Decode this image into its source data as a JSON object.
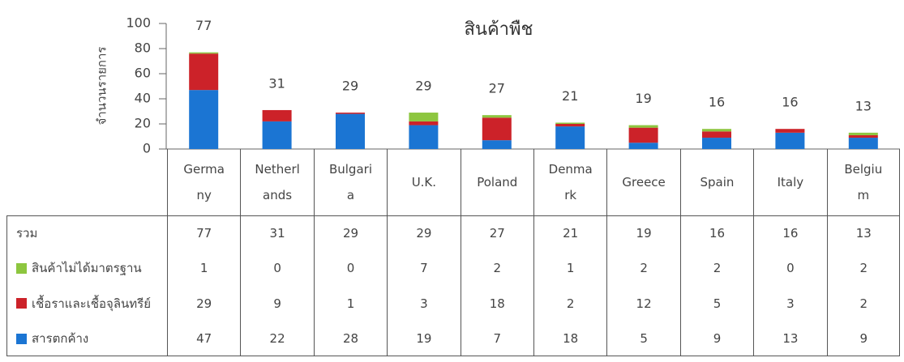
{
  "chart_data": {
    "type": "stacked_bar",
    "title": "สินค้าพืช",
    "y_label": "จำนวนรายการ",
    "categories": [
      "Germany",
      "Netherlands",
      "Bulgaria",
      "U.K.",
      "Poland",
      "Denmark",
      "Greece",
      "Spain",
      "Italy",
      "Belgium"
    ],
    "series": [
      {
        "name": "สารตกค้าง",
        "color": "#1b75d3",
        "values": [
          47,
          22,
          28,
          19,
          7,
          18,
          5,
          9,
          13,
          9
        ]
      },
      {
        "name": "เชื้อราและเชื้อจุลินทรีย์",
        "color": "#cc2229",
        "values": [
          29,
          9,
          1,
          3,
          18,
          2,
          12,
          5,
          3,
          2
        ]
      },
      {
        "name": "สินค้าไม่ได้มาตรฐาน",
        "color": "#8dc63f",
        "values": [
          1,
          0,
          0,
          7,
          2,
          1,
          2,
          2,
          0,
          2
        ]
      }
    ],
    "total_label": "รวม",
    "totals": [
      77,
      31,
      29,
      29,
      27,
      21,
      19,
      16,
      16,
      13
    ],
    "ylim": [
      0,
      100
    ],
    "yticks": [
      0,
      20,
      40,
      60,
      80,
      100
    ],
    "grid": false
  }
}
